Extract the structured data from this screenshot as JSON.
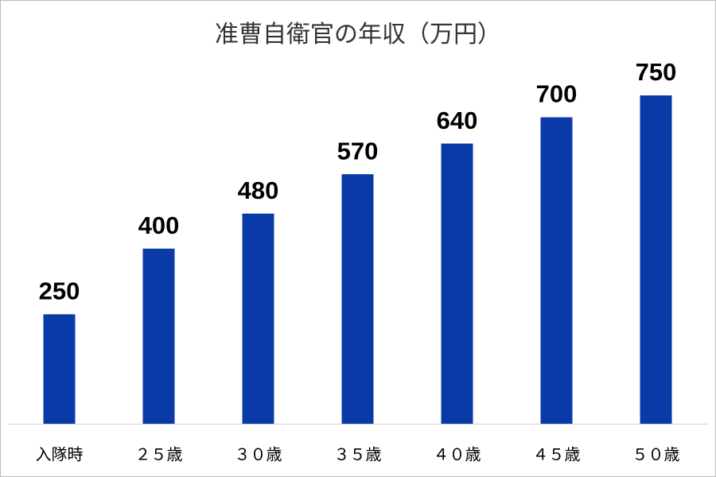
{
  "chart_data": {
    "type": "bar",
    "title": "准曹自衛官の年収（万円）",
    "categories": [
      "入隊時",
      "２５歳",
      "３０歳",
      "３５歳",
      "４０歳",
      "４５歳",
      "５０歳"
    ],
    "values": [
      250,
      400,
      480,
      570,
      640,
      700,
      750
    ],
    "color": "#0a3aa8"
  }
}
